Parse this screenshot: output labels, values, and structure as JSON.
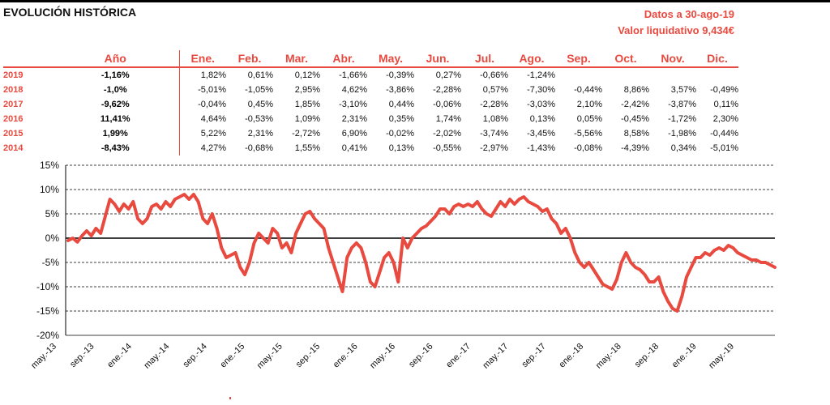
{
  "header": {
    "title": "EVOLUCIÓN HISTÓRICA",
    "date_line": "Datos a 30-ago-19",
    "nav_line": "Valor liquidativo 9,434€"
  },
  "table": {
    "columns": [
      "Año",
      "Ene.",
      "Feb.",
      "Mar.",
      "Abr.",
      "May.",
      "Jun.",
      "Jul.",
      "Ago.",
      "Sep.",
      "Oct.",
      "Nov.",
      "Dic."
    ],
    "rows": [
      {
        "year": "2019",
        "annual": "-1,16%",
        "months": [
          "1,82%",
          "0,61%",
          "0,12%",
          "-1,66%",
          "-0,39%",
          "0,27%",
          "-0,66%",
          "-1,24%",
          "",
          "",
          "",
          ""
        ]
      },
      {
        "year": "2018",
        "annual": "-1,0%",
        "months": [
          "-5,01%",
          "-1,05%",
          "2,95%",
          "4,62%",
          "-3,86%",
          "-2,28%",
          "0,57%",
          "-7,30%",
          "-0,44%",
          "8,86%",
          "3,57%",
          "-0,49%"
        ]
      },
      {
        "year": "2017",
        "annual": "-9,62%",
        "months": [
          "-0,04%",
          "0,45%",
          "1,85%",
          "-3,10%",
          "0,44%",
          "-0,06%",
          "-2,28%",
          "-3,03%",
          "2,10%",
          "-2,42%",
          "-3,87%",
          "0,11%"
        ]
      },
      {
        "year": "2016",
        "annual": "11,41%",
        "months": [
          "4,64%",
          "-0,53%",
          "1,09%",
          "2,31%",
          "0,35%",
          "1,74%",
          "1,08%",
          "0,13%",
          "0,05%",
          "-0,45%",
          "-1,72%",
          "2,30%"
        ]
      },
      {
        "year": "2015",
        "annual": "1,99%",
        "months": [
          "5,22%",
          "2,31%",
          "-2,72%",
          "6,90%",
          "-0,02%",
          "-2,02%",
          "-3,74%",
          "-3,45%",
          "-5,56%",
          "8,58%",
          "-1,98%",
          "-0,44%"
        ]
      },
      {
        "year": "2014",
        "annual": "-8,43%",
        "months": [
          "4,27%",
          "-0,68%",
          "1,55%",
          "0,41%",
          "0,13%",
          "-0,55%",
          "-2,97%",
          "-1,43%",
          "-0,08%",
          "-4,39%",
          "0,34%",
          "-5,01%"
        ]
      }
    ]
  },
  "chart_data": {
    "type": "line",
    "ylim": [
      -20,
      15
    ],
    "yticks": [
      15,
      10,
      5,
      0,
      -5,
      -10,
      -15,
      -20
    ],
    "ytick_labels": [
      "15%",
      "10%",
      "5%",
      "0%",
      "-5%",
      "-10%",
      "-15%",
      "-20%"
    ],
    "xtick_labels": [
      "may.-13",
      "sep.-13",
      "ene.-14",
      "may.-14",
      "sep.-14",
      "ene.-15",
      "may.-15",
      "sep.-15",
      "ene.-16",
      "may.-16",
      "sep.-16",
      "ene.-17",
      "may.-17",
      "sep.-17",
      "ene.-18",
      "may.-18",
      "sep.-18",
      "ene.-19",
      "may.-19"
    ],
    "grid": true,
    "series_color": "#e84a3f",
    "series": [
      {
        "x": [
          0,
          0.5,
          1,
          1.5,
          2,
          2.5,
          3,
          3.5,
          4,
          4.5,
          5,
          5.5,
          6,
          6.5,
          7,
          7.5,
          8,
          8.5,
          9,
          9.5,
          10,
          10.5,
          11,
          11.5,
          12,
          12.5,
          13,
          13.5,
          14,
          14.5,
          15,
          15.5,
          16,
          16.5,
          17,
          17.5,
          18,
          18.5,
          19,
          19.5,
          20,
          20.5,
          21,
          21.5,
          22,
          22.5,
          23,
          23.5,
          24,
          24.5,
          25,
          25.5,
          26,
          26.5,
          27,
          27.5,
          28,
          28.5,
          29,
          29.5,
          30,
          30.5,
          31,
          31.5,
          32,
          32.5,
          33,
          33.5,
          34,
          34.5,
          35,
          35.5,
          36,
          36.5,
          37,
          37.5,
          38,
          38.5,
          39,
          39.5,
          40,
          40.5,
          41,
          41.5,
          42,
          42.5,
          43,
          43.5,
          44,
          44.5,
          45,
          45.5,
          46,
          46.5,
          47,
          47.5,
          48,
          48.5,
          49,
          49.5,
          50,
          50.5,
          51,
          51.5,
          52,
          52.5,
          53,
          53.5,
          54,
          54.5,
          55,
          55.5,
          56,
          56.5,
          57,
          57.5,
          58,
          58.5,
          59,
          59.5,
          60,
          60.5,
          61,
          61.5,
          62,
          62.5,
          63,
          63.5,
          64,
          64.5,
          65,
          65.5,
          66,
          66.5,
          67,
          67.5,
          68,
          68.5,
          69,
          69.5,
          70,
          70.5,
          71,
          71.5,
          72,
          72.5,
          73,
          73.5,
          74,
          74.5,
          75,
          75.5,
          76
        ],
        "y": [
          -0.5,
          0,
          -0.8,
          0.5,
          1.5,
          0.5,
          2,
          1,
          4.5,
          8,
          7,
          5.5,
          7,
          6,
          7.5,
          4,
          3,
          4,
          6.5,
          7,
          6,
          7.5,
          6.5,
          8,
          8.5,
          9,
          8,
          9,
          7.5,
          4,
          3,
          5,
          2,
          -2,
          -4,
          -3.5,
          -3,
          -6,
          -7.5,
          -5,
          -1,
          1,
          0,
          -1,
          2,
          1,
          -2,
          -1,
          -3,
          1,
          3,
          5,
          5.5,
          4,
          3,
          2,
          -2,
          -5,
          -8,
          -11,
          -4,
          -2,
          -1,
          -2,
          -5,
          -9,
          -10,
          -7,
          -4,
          -3,
          -5,
          -9,
          0,
          -2,
          0,
          1,
          2,
          2.5,
          3.5,
          4.5,
          6,
          6,
          5,
          6.5,
          7,
          6.5,
          7,
          6.5,
          7.5,
          6,
          5,
          4.5,
          6,
          7.5,
          6.5,
          8,
          7,
          8,
          8.5,
          7.5,
          7,
          6.5,
          5.5,
          6,
          4,
          3,
          1,
          2,
          0,
          -3,
          -5,
          -6,
          -5,
          -6.5,
          -8,
          -9.5,
          -10,
          -10.5,
          -8.5,
          -5,
          -3,
          -5,
          -6,
          -6.5,
          -7.5,
          -9,
          -9,
          -8,
          -11,
          -13,
          -14.5,
          -15,
          -12,
          -8,
          -6,
          -4,
          -4,
          -3,
          -3.5,
          -2.5,
          -2,
          -2.5,
          -1.5,
          -2,
          -3,
          -3.5,
          -4,
          -4.5,
          -4.5,
          -5,
          -5,
          -5.5,
          -6
        ]
      }
    ]
  }
}
